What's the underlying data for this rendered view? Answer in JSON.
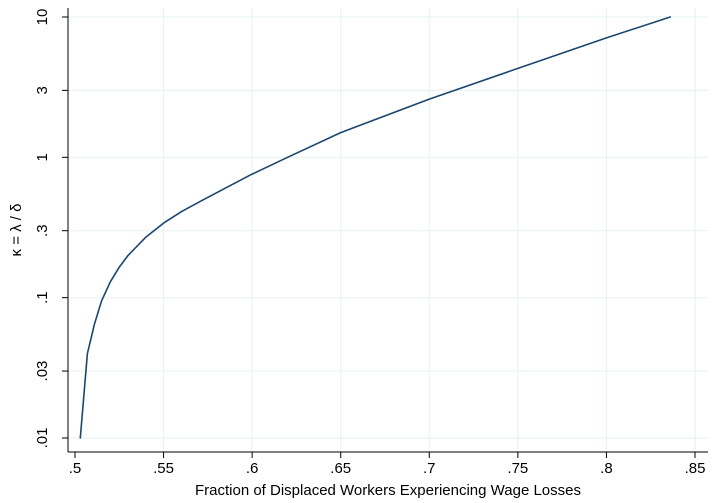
{
  "chart_data": {
    "type": "line",
    "xlabel": "Fraction of Displaced Workers Experiencing Wage Losses",
    "ylabel": "κ = λ / δ",
    "xlim": [
      0.5,
      0.85
    ],
    "ylim": [
      0.01,
      10
    ],
    "yscale": "log",
    "grid": true,
    "legend": "none",
    "x_ticks": [
      {
        "value": 0.5,
        "label": ".5"
      },
      {
        "value": 0.55,
        "label": ".55"
      },
      {
        "value": 0.6,
        "label": ".6"
      },
      {
        "value": 0.65,
        "label": ".65"
      },
      {
        "value": 0.7,
        "label": ".7"
      },
      {
        "value": 0.75,
        "label": ".75"
      },
      {
        "value": 0.8,
        "label": ".8"
      },
      {
        "value": 0.85,
        "label": ".85"
      }
    ],
    "y_ticks": [
      {
        "value": 0.01,
        "label": ".01"
      },
      {
        "value": 0.03,
        "label": ".03"
      },
      {
        "value": 0.1,
        "label": ".1"
      },
      {
        "value": 0.3,
        "label": ".3"
      },
      {
        "value": 1,
        "label": "1"
      },
      {
        "value": 3,
        "label": "3"
      },
      {
        "value": 10,
        "label": "10"
      }
    ],
    "series": [
      {
        "color": "#1a476f",
        "x": [
          0.503,
          0.507,
          0.511,
          0.515,
          0.52,
          0.525,
          0.53,
          0.54,
          0.55,
          0.56,
          0.57,
          0.58,
          0.6,
          0.62,
          0.65,
          0.7,
          0.75,
          0.8,
          0.836
        ],
        "y": [
          0.01,
          0.04,
          0.065,
          0.095,
          0.13,
          0.165,
          0.2,
          0.27,
          0.34,
          0.41,
          0.48,
          0.56,
          0.76,
          1.0,
          1.5,
          2.6,
          4.3,
          7.1,
          10
        ]
      }
    ]
  },
  "colors": {
    "line": "#1a476f",
    "grid": "#eaf2f3",
    "axis": "#000000"
  }
}
